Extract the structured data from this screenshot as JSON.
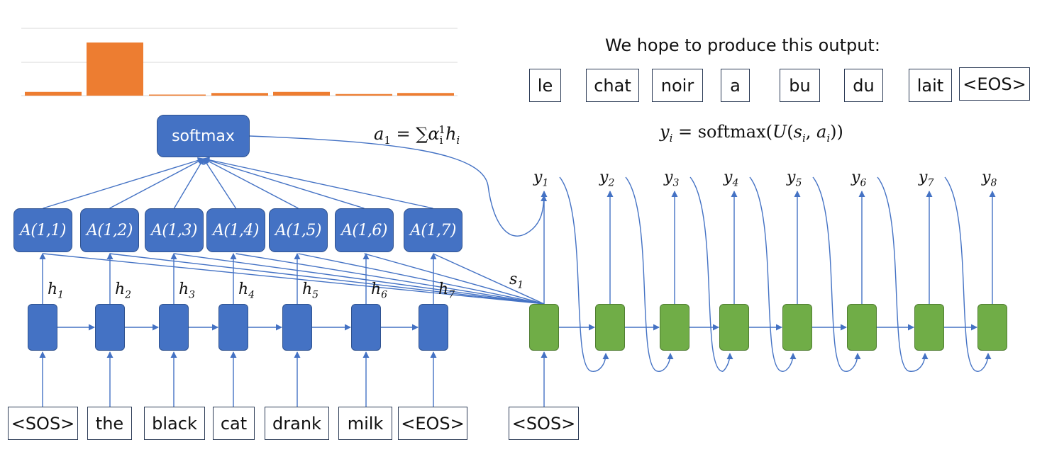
{
  "output_title": "We hope to produce this output:",
  "output_words": [
    "le",
    "chat",
    "noir",
    "a",
    "bu",
    "du",
    "lait",
    "<EOS>"
  ],
  "input_words": [
    "<SOS>",
    "the",
    "black",
    "cat",
    "drank",
    "milk",
    "<EOS>"
  ],
  "decoder_input": "<SOS>",
  "softmax_label": "softmax",
  "attention_labels": [
    "A(1,1)",
    "A(1,2)",
    "A(1,3)",
    "A(1,4)",
    "A(1,5)",
    "A(1,6)",
    "A(1,7)"
  ],
  "encoder_states": [
    {
      "sym": "h",
      "sub": "1"
    },
    {
      "sym": "h",
      "sub": "2"
    },
    {
      "sym": "h",
      "sub": "3"
    },
    {
      "sym": "h",
      "sub": "4"
    },
    {
      "sym": "h",
      "sub": "5"
    },
    {
      "sym": "h",
      "sub": "6"
    },
    {
      "sym": "h",
      "sub": "7"
    }
  ],
  "decoder_state": {
    "sym": "s",
    "sub": "1"
  },
  "decoder_outputs": [
    {
      "sym": "y",
      "sub": "1"
    },
    {
      "sym": "y",
      "sub": "2"
    },
    {
      "sym": "y",
      "sub": "3"
    },
    {
      "sym": "y",
      "sub": "4"
    },
    {
      "sym": "y",
      "sub": "5"
    },
    {
      "sym": "y",
      "sub": "6"
    },
    {
      "sym": "y",
      "sub": "7"
    },
    {
      "sym": "y",
      "sub": "8"
    }
  ],
  "context_equation": {
    "lhs": "a",
    "lhs_sub": "1",
    "eq": " = ∑",
    "alpha": "α",
    "alpha_sub": "i",
    "alpha_sup": "1",
    "h": "h",
    "h_sub": "i"
  },
  "output_equation": {
    "y": "y",
    "y_sub": "i",
    "mid": " = softmax(",
    "U": "U",
    "args_open": "(",
    "s": "s",
    "s_sub": "i",
    "comma": ", ",
    "a": "a",
    "a_sub": "i",
    "close": "))"
  },
  "colors": {
    "encoder": "#4472c4",
    "decoder": "#70ad47",
    "bar": "#ed7d31",
    "arrow": "#4472c4",
    "grid": "#d9d9d9"
  },
  "chart_data": {
    "type": "bar",
    "categories": [
      "",
      "",
      "",
      "",
      "",
      "",
      ""
    ],
    "values": [
      0.07,
      1.0,
      0.015,
      0.05,
      0.07,
      0.03,
      0.05
    ],
    "ylim": [
      0,
      1.3
    ],
    "grid": true
  }
}
